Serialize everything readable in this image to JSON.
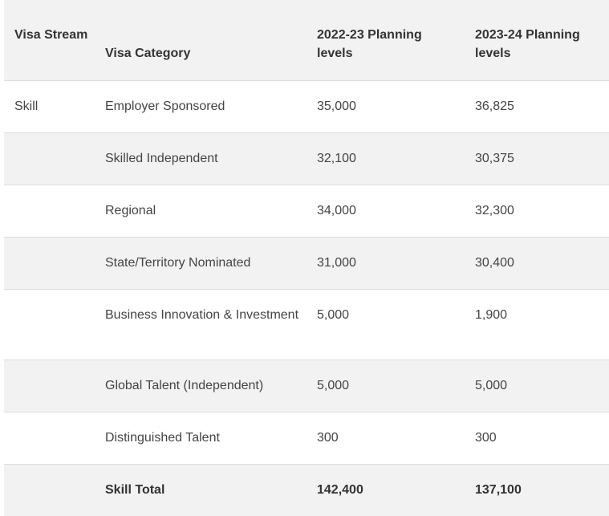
{
  "table": {
    "headers": {
      "stream": "Visa Stream",
      "category": "Visa Category",
      "y2022": "2022-23 Planning levels",
      "y2023": "2023-24 Planning levels"
    },
    "rows": [
      {
        "stream": "Skill",
        "category": "Employer Sponsored",
        "y2022": "35,000",
        "y2023": "36,825"
      },
      {
        "stream": "",
        "category": "Skilled Independent",
        "y2022": "32,100",
        "y2023": "30,375"
      },
      {
        "stream": "",
        "category": "Regional",
        "y2022": "34,000",
        "y2023": "32,300"
      },
      {
        "stream": "",
        "category": "State/Territory Nominated",
        "y2022": "31,000",
        "y2023": "30,400"
      },
      {
        "stream": "",
        "category": "Business Innovation & Investment",
        "y2022": "5,000",
        "y2023": "1,900"
      },
      {
        "stream": "",
        "category": "Global Talent (Independent)",
        "y2022": "5,000",
        "y2023": "5,000"
      },
      {
        "stream": "",
        "category": "Distinguished Talent",
        "y2022": "300",
        "y2023": "300"
      }
    ],
    "total": {
      "stream": "",
      "category": "Skill Total",
      "y2022": "142,400",
      "y2023": "137,100"
    }
  }
}
